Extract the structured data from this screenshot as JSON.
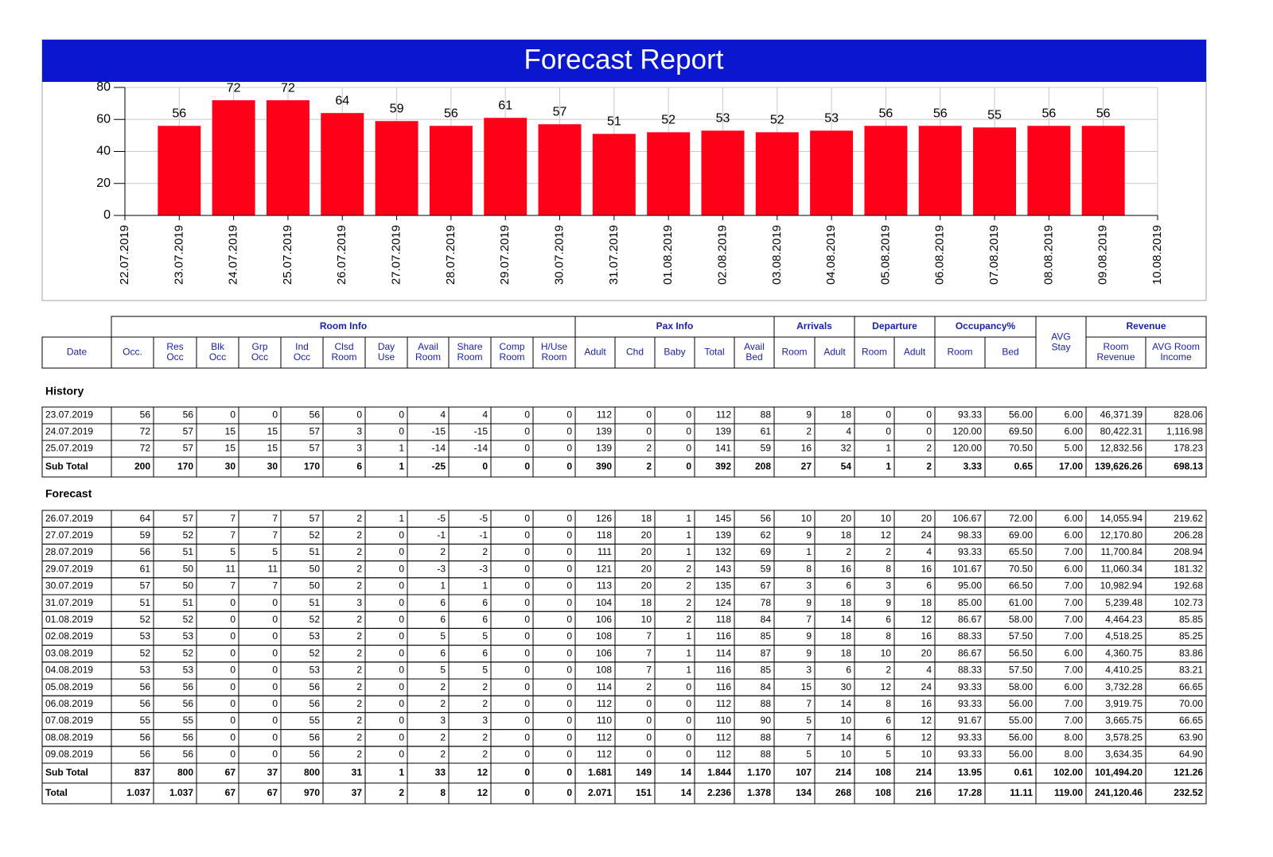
{
  "chart_data": {
    "type": "bar",
    "title": "Forecast Report",
    "categories": [
      "22.07.2019",
      "23.07.2019",
      "24.07.2019",
      "25.07.2019",
      "26.07.2019",
      "27.07.2019",
      "28.07.2019",
      "29.07.2019",
      "30.07.2019",
      "31.07.2019",
      "01.08.2019",
      "02.08.2019",
      "03.08.2019",
      "04.08.2019",
      "05.08.2019",
      "06.08.2019",
      "07.08.2019",
      "08.08.2019",
      "09.08.2019",
      "10.08.2019"
    ],
    "values": [
      null,
      56,
      72,
      72,
      64,
      59,
      56,
      61,
      57,
      51,
      52,
      53,
      52,
      53,
      56,
      56,
      55,
      56,
      56,
      null
    ],
    "color": "#ff0019",
    "ylim": [
      0,
      80
    ],
    "yticks": [
      0,
      20,
      40,
      60,
      80
    ],
    "grid": true
  },
  "table": {
    "groups": [
      "Room Info",
      "Pax Info",
      "Arrivals",
      "Departure",
      "Occupancy%",
      "Revenue"
    ],
    "columns": [
      [
        "Date"
      ],
      [
        "Occ."
      ],
      [
        "Res",
        "Occ"
      ],
      [
        "Blk",
        "Occ"
      ],
      [
        "Grp",
        "Occ"
      ],
      [
        "Ind",
        "Occ"
      ],
      [
        "Clsd",
        "Room"
      ],
      [
        "Day",
        "Use"
      ],
      [
        "Avail",
        "Room"
      ],
      [
        "Share",
        "Room"
      ],
      [
        "Comp",
        "Room"
      ],
      [
        "H/Use",
        "Room"
      ],
      [
        "Adult"
      ],
      [
        "Chd"
      ],
      [
        "Baby"
      ],
      [
        "Total"
      ],
      [
        "Avail",
        "Bed"
      ],
      [
        "Room"
      ],
      [
        "Adult"
      ],
      [
        "Room"
      ],
      [
        "Adult"
      ],
      [
        "Room"
      ],
      [
        "Bed"
      ],
      [
        "AVG",
        "Stay"
      ],
      [
        "Room",
        "Revenue"
      ],
      [
        "AVG Room",
        "Income"
      ]
    ],
    "history": {
      "label": "History",
      "rows": [
        [
          "23.07.2019",
          "56",
          "56",
          "0",
          "0",
          "56",
          "0",
          "0",
          "4",
          "4",
          "0",
          "0",
          "112",
          "0",
          "0",
          "112",
          "88",
          "9",
          "18",
          "0",
          "0",
          "93.33",
          "56.00",
          "6.00",
          "46,371.39",
          "828.06"
        ],
        [
          "24.07.2019",
          "72",
          "57",
          "15",
          "15",
          "57",
          "3",
          "0",
          "-15",
          "-15",
          "0",
          "0",
          "139",
          "0",
          "0",
          "139",
          "61",
          "2",
          "4",
          "0",
          "0",
          "120.00",
          "69.50",
          "6.00",
          "80,422.31",
          "1,116.98"
        ],
        [
          "25.07.2019",
          "72",
          "57",
          "15",
          "15",
          "57",
          "3",
          "1",
          "-14",
          "-14",
          "0",
          "0",
          "139",
          "2",
          "0",
          "141",
          "59",
          "16",
          "32",
          "1",
          "2",
          "120.00",
          "70.50",
          "5.00",
          "12,832.56",
          "178.23"
        ]
      ],
      "subtotal": [
        "Sub Total",
        "200",
        "170",
        "30",
        "30",
        "170",
        "6",
        "1",
        "-25",
        "0",
        "0",
        "0",
        "390",
        "2",
        "0",
        "392",
        "208",
        "27",
        "54",
        "1",
        "2",
        "3.33",
        "0.65",
        "17.00",
        "139,626.26",
        "698.13"
      ]
    },
    "forecast": {
      "label": "Forecast",
      "rows": [
        [
          "26.07.2019",
          "64",
          "57",
          "7",
          "7",
          "57",
          "2",
          "1",
          "-5",
          "-5",
          "0",
          "0",
          "126",
          "18",
          "1",
          "145",
          "56",
          "10",
          "20",
          "10",
          "20",
          "106.67",
          "72.00",
          "6.00",
          "14,055.94",
          "219.62"
        ],
        [
          "27.07.2019",
          "59",
          "52",
          "7",
          "7",
          "52",
          "2",
          "0",
          "-1",
          "-1",
          "0",
          "0",
          "118",
          "20",
          "1",
          "139",
          "62",
          "9",
          "18",
          "12",
          "24",
          "98.33",
          "69.00",
          "6.00",
          "12,170.80",
          "206.28"
        ],
        [
          "28.07.2019",
          "56",
          "51",
          "5",
          "5",
          "51",
          "2",
          "0",
          "2",
          "2",
          "0",
          "0",
          "111",
          "20",
          "1",
          "132",
          "69",
          "1",
          "2",
          "2",
          "4",
          "93.33",
          "65.50",
          "7.00",
          "11,700.84",
          "208.94"
        ],
        [
          "29.07.2019",
          "61",
          "50",
          "11",
          "11",
          "50",
          "2",
          "0",
          "-3",
          "-3",
          "0",
          "0",
          "121",
          "20",
          "2",
          "143",
          "59",
          "8",
          "16",
          "8",
          "16",
          "101.67",
          "70.50",
          "6.00",
          "11,060.34",
          "181.32"
        ],
        [
          "30.07.2019",
          "57",
          "50",
          "7",
          "7",
          "50",
          "2",
          "0",
          "1",
          "1",
          "0",
          "0",
          "113",
          "20",
          "2",
          "135",
          "67",
          "3",
          "6",
          "3",
          "6",
          "95.00",
          "66.50",
          "7.00",
          "10,982.94",
          "192.68"
        ],
        [
          "31.07.2019",
          "51",
          "51",
          "0",
          "0",
          "51",
          "3",
          "0",
          "6",
          "6",
          "0",
          "0",
          "104",
          "18",
          "2",
          "124",
          "78",
          "9",
          "18",
          "9",
          "18",
          "85.00",
          "61.00",
          "7.00",
          "5,239.48",
          "102.73"
        ],
        [
          "01.08.2019",
          "52",
          "52",
          "0",
          "0",
          "52",
          "2",
          "0",
          "6",
          "6",
          "0",
          "0",
          "106",
          "10",
          "2",
          "118",
          "84",
          "7",
          "14",
          "6",
          "12",
          "86.67",
          "58.00",
          "7.00",
          "4,464.23",
          "85.85"
        ],
        [
          "02.08.2019",
          "53",
          "53",
          "0",
          "0",
          "53",
          "2",
          "0",
          "5",
          "5",
          "0",
          "0",
          "108",
          "7",
          "1",
          "116",
          "85",
          "9",
          "18",
          "8",
          "16",
          "88.33",
          "57.50",
          "7.00",
          "4,518.25",
          "85.25"
        ],
        [
          "03.08.2019",
          "52",
          "52",
          "0",
          "0",
          "52",
          "2",
          "0",
          "6",
          "6",
          "0",
          "0",
          "106",
          "7",
          "1",
          "114",
          "87",
          "9",
          "18",
          "10",
          "20",
          "86.67",
          "56.50",
          "6.00",
          "4,360.75",
          "83.86"
        ],
        [
          "04.08.2019",
          "53",
          "53",
          "0",
          "0",
          "53",
          "2",
          "0",
          "5",
          "5",
          "0",
          "0",
          "108",
          "7",
          "1",
          "116",
          "85",
          "3",
          "6",
          "2",
          "4",
          "88.33",
          "57.50",
          "7.00",
          "4,410.25",
          "83.21"
        ],
        [
          "05.08.2019",
          "56",
          "56",
          "0",
          "0",
          "56",
          "2",
          "0",
          "2",
          "2",
          "0",
          "0",
          "114",
          "2",
          "0",
          "116",
          "84",
          "15",
          "30",
          "12",
          "24",
          "93.33",
          "58.00",
          "6.00",
          "3,732.28",
          "66.65"
        ],
        [
          "06.08.2019",
          "56",
          "56",
          "0",
          "0",
          "56",
          "2",
          "0",
          "2",
          "2",
          "0",
          "0",
          "112",
          "0",
          "0",
          "112",
          "88",
          "7",
          "14",
          "8",
          "16",
          "93.33",
          "56.00",
          "7.00",
          "3,919.75",
          "70.00"
        ],
        [
          "07.08.2019",
          "55",
          "55",
          "0",
          "0",
          "55",
          "2",
          "0",
          "3",
          "3",
          "0",
          "0",
          "110",
          "0",
          "0",
          "110",
          "90",
          "5",
          "10",
          "6",
          "12",
          "91.67",
          "55.00",
          "7.00",
          "3,665.75",
          "66.65"
        ],
        [
          "08.08.2019",
          "56",
          "56",
          "0",
          "0",
          "56",
          "2",
          "0",
          "2",
          "2",
          "0",
          "0",
          "112",
          "0",
          "0",
          "112",
          "88",
          "7",
          "14",
          "6",
          "12",
          "93.33",
          "56.00",
          "8.00",
          "3,578.25",
          "63.90"
        ],
        [
          "09.08.2019",
          "56",
          "56",
          "0",
          "0",
          "56",
          "2",
          "0",
          "2",
          "2",
          "0",
          "0",
          "112",
          "0",
          "0",
          "112",
          "88",
          "5",
          "10",
          "5",
          "10",
          "93.33",
          "56.00",
          "8.00",
          "3,634.35",
          "64.90"
        ]
      ],
      "subtotal": [
        "Sub Total",
        "837",
        "800",
        "67",
        "37",
        "800",
        "31",
        "1",
        "33",
        "12",
        "0",
        "0",
        "1.681",
        "149",
        "14",
        "1.844",
        "1.170",
        "107",
        "214",
        "108",
        "214",
        "13.95",
        "0.61",
        "102.00",
        "101,494.20",
        "121.26"
      ],
      "total": [
        "Total",
        "1.037",
        "1.037",
        "67",
        "67",
        "970",
        "37",
        "2",
        "8",
        "12",
        "0",
        "0",
        "2.071",
        "151",
        "14",
        "2.236",
        "1.378",
        "134",
        "268",
        "108",
        "216",
        "17.28",
        "11.11",
        "119.00",
        "241,120.46",
        "232.52"
      ]
    }
  }
}
